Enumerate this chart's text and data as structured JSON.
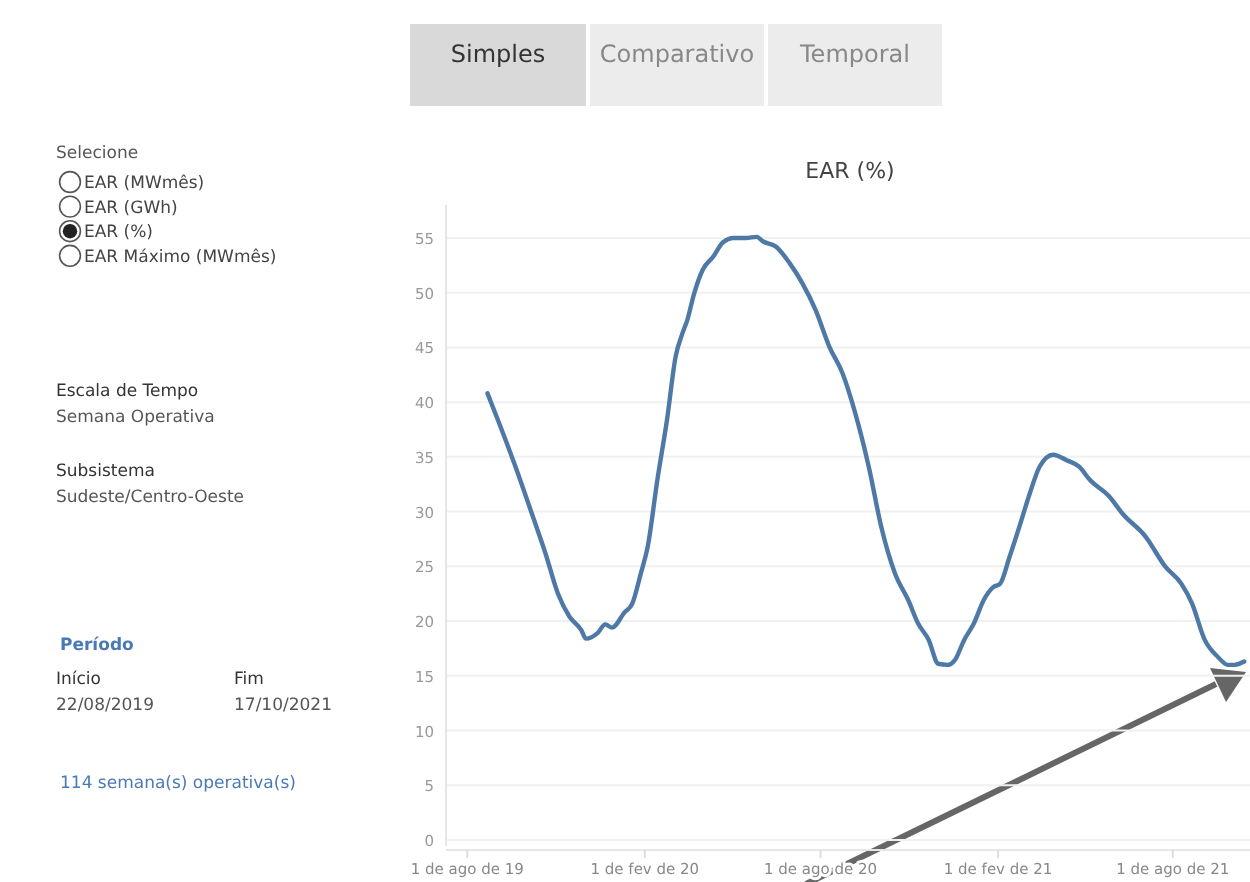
{
  "chart_data": {
    "type": "line",
    "title": "EAR (%)",
    "xlim": [
      "2019-07-10",
      "2021-10-20"
    ],
    "xticks": [
      {
        "value": "2019-08-01",
        "label": "1 de ago de 19"
      },
      {
        "value": "2020-02-01",
        "label": "1 de fev de 20"
      },
      {
        "value": "2020-08-01",
        "label": "1 de ago de 20"
      },
      {
        "value": "2021-02-01",
        "label": "1 de fev de 21"
      },
      {
        "value": "2021-08-01",
        "label": "1 de ago de 21"
      }
    ],
    "ylim": [
      0,
      58
    ],
    "yticks": [
      0,
      5,
      10,
      15,
      20,
      25,
      30,
      35,
      40,
      45,
      50,
      55
    ],
    "grid": "y",
    "marker": "none",
    "line_style": "solid",
    "x": [
      "2019-08-22",
      "2019-09-03",
      "2019-09-20",
      "2019-10-07",
      "2019-10-21",
      "2019-11-03",
      "2019-11-15",
      "2019-11-27",
      "2019-12-02",
      "2019-12-14",
      "2019-12-22",
      "2019-12-29",
      "2020-01-11",
      "2020-01-19",
      "2020-01-28",
      "2020-02-04",
      "2020-02-14",
      "2020-02-24",
      "2020-03-04",
      "2020-03-11",
      "2020-03-16",
      "2020-03-23",
      "2020-04-01",
      "2020-04-12",
      "2020-04-22",
      "2020-05-03",
      "2020-05-16",
      "2020-05-27",
      "2020-06-02",
      "2020-06-16",
      "2020-06-30",
      "2020-07-13",
      "2020-07-27",
      "2020-08-10",
      "2020-08-24",
      "2020-09-06",
      "2020-09-20",
      "2020-10-03",
      "2020-10-17",
      "2020-10-31",
      "2020-11-10",
      "2020-11-21",
      "2020-12-01",
      "2020-12-11",
      "2020-12-18",
      "2020-12-28",
      "2021-01-07",
      "2021-01-17",
      "2021-01-27",
      "2021-02-03",
      "2021-02-13",
      "2021-02-23",
      "2021-03-06",
      "2021-03-16",
      "2021-03-30",
      "2021-04-13",
      "2021-04-26",
      "2021-05-07",
      "2021-05-27",
      "2021-06-10",
      "2021-07-04",
      "2021-07-24",
      "2021-08-10",
      "2021-08-21",
      "2021-09-03",
      "2021-09-17",
      "2021-09-27",
      "2021-10-04",
      "2021-10-14"
    ],
    "series": [
      {
        "color": "#4e79a7",
        "values": [
          40.8,
          38.1,
          34.1,
          29.8,
          26.2,
          22.5,
          20.4,
          19.2,
          18.4,
          18.9,
          19.7,
          19.4,
          20.8,
          21.6,
          24.4,
          26.8,
          32.9,
          38.4,
          44.2,
          46.3,
          47.5,
          49.9,
          52.1,
          53.3,
          54.6,
          55.0,
          55.0,
          55.1,
          54.7,
          54.2,
          52.7,
          50.9,
          48.4,
          45.1,
          42.6,
          39.0,
          34.1,
          28.6,
          24.4,
          21.9,
          19.8,
          18.3,
          16.1,
          16.0,
          16.4,
          18.3,
          19.8,
          21.9,
          23.1,
          23.4,
          25.9,
          28.6,
          31.7,
          34.1,
          35.2,
          34.7,
          34.1,
          32.9,
          31.4,
          29.8,
          27.7,
          25.0,
          23.4,
          21.6,
          18.3,
          16.7,
          16.0,
          16.0,
          16.3
        ]
      }
    ],
    "annotations": [
      "Simples",
      "Comparativo",
      "Temporal",
      "Selecione",
      "EAR (MWmês)",
      "EAR (GWh)",
      "EAR (%)",
      "EAR Máximo (MWmês)",
      "Escala de Tempo",
      "Semana Operativa",
      "Subsistema",
      "Sudeste/Centro-Oeste",
      "Período",
      "Início",
      "22/08/2019",
      "Fim",
      "17/10/2021",
      "114 semana(s) operativa(s)"
    ]
  }
}
